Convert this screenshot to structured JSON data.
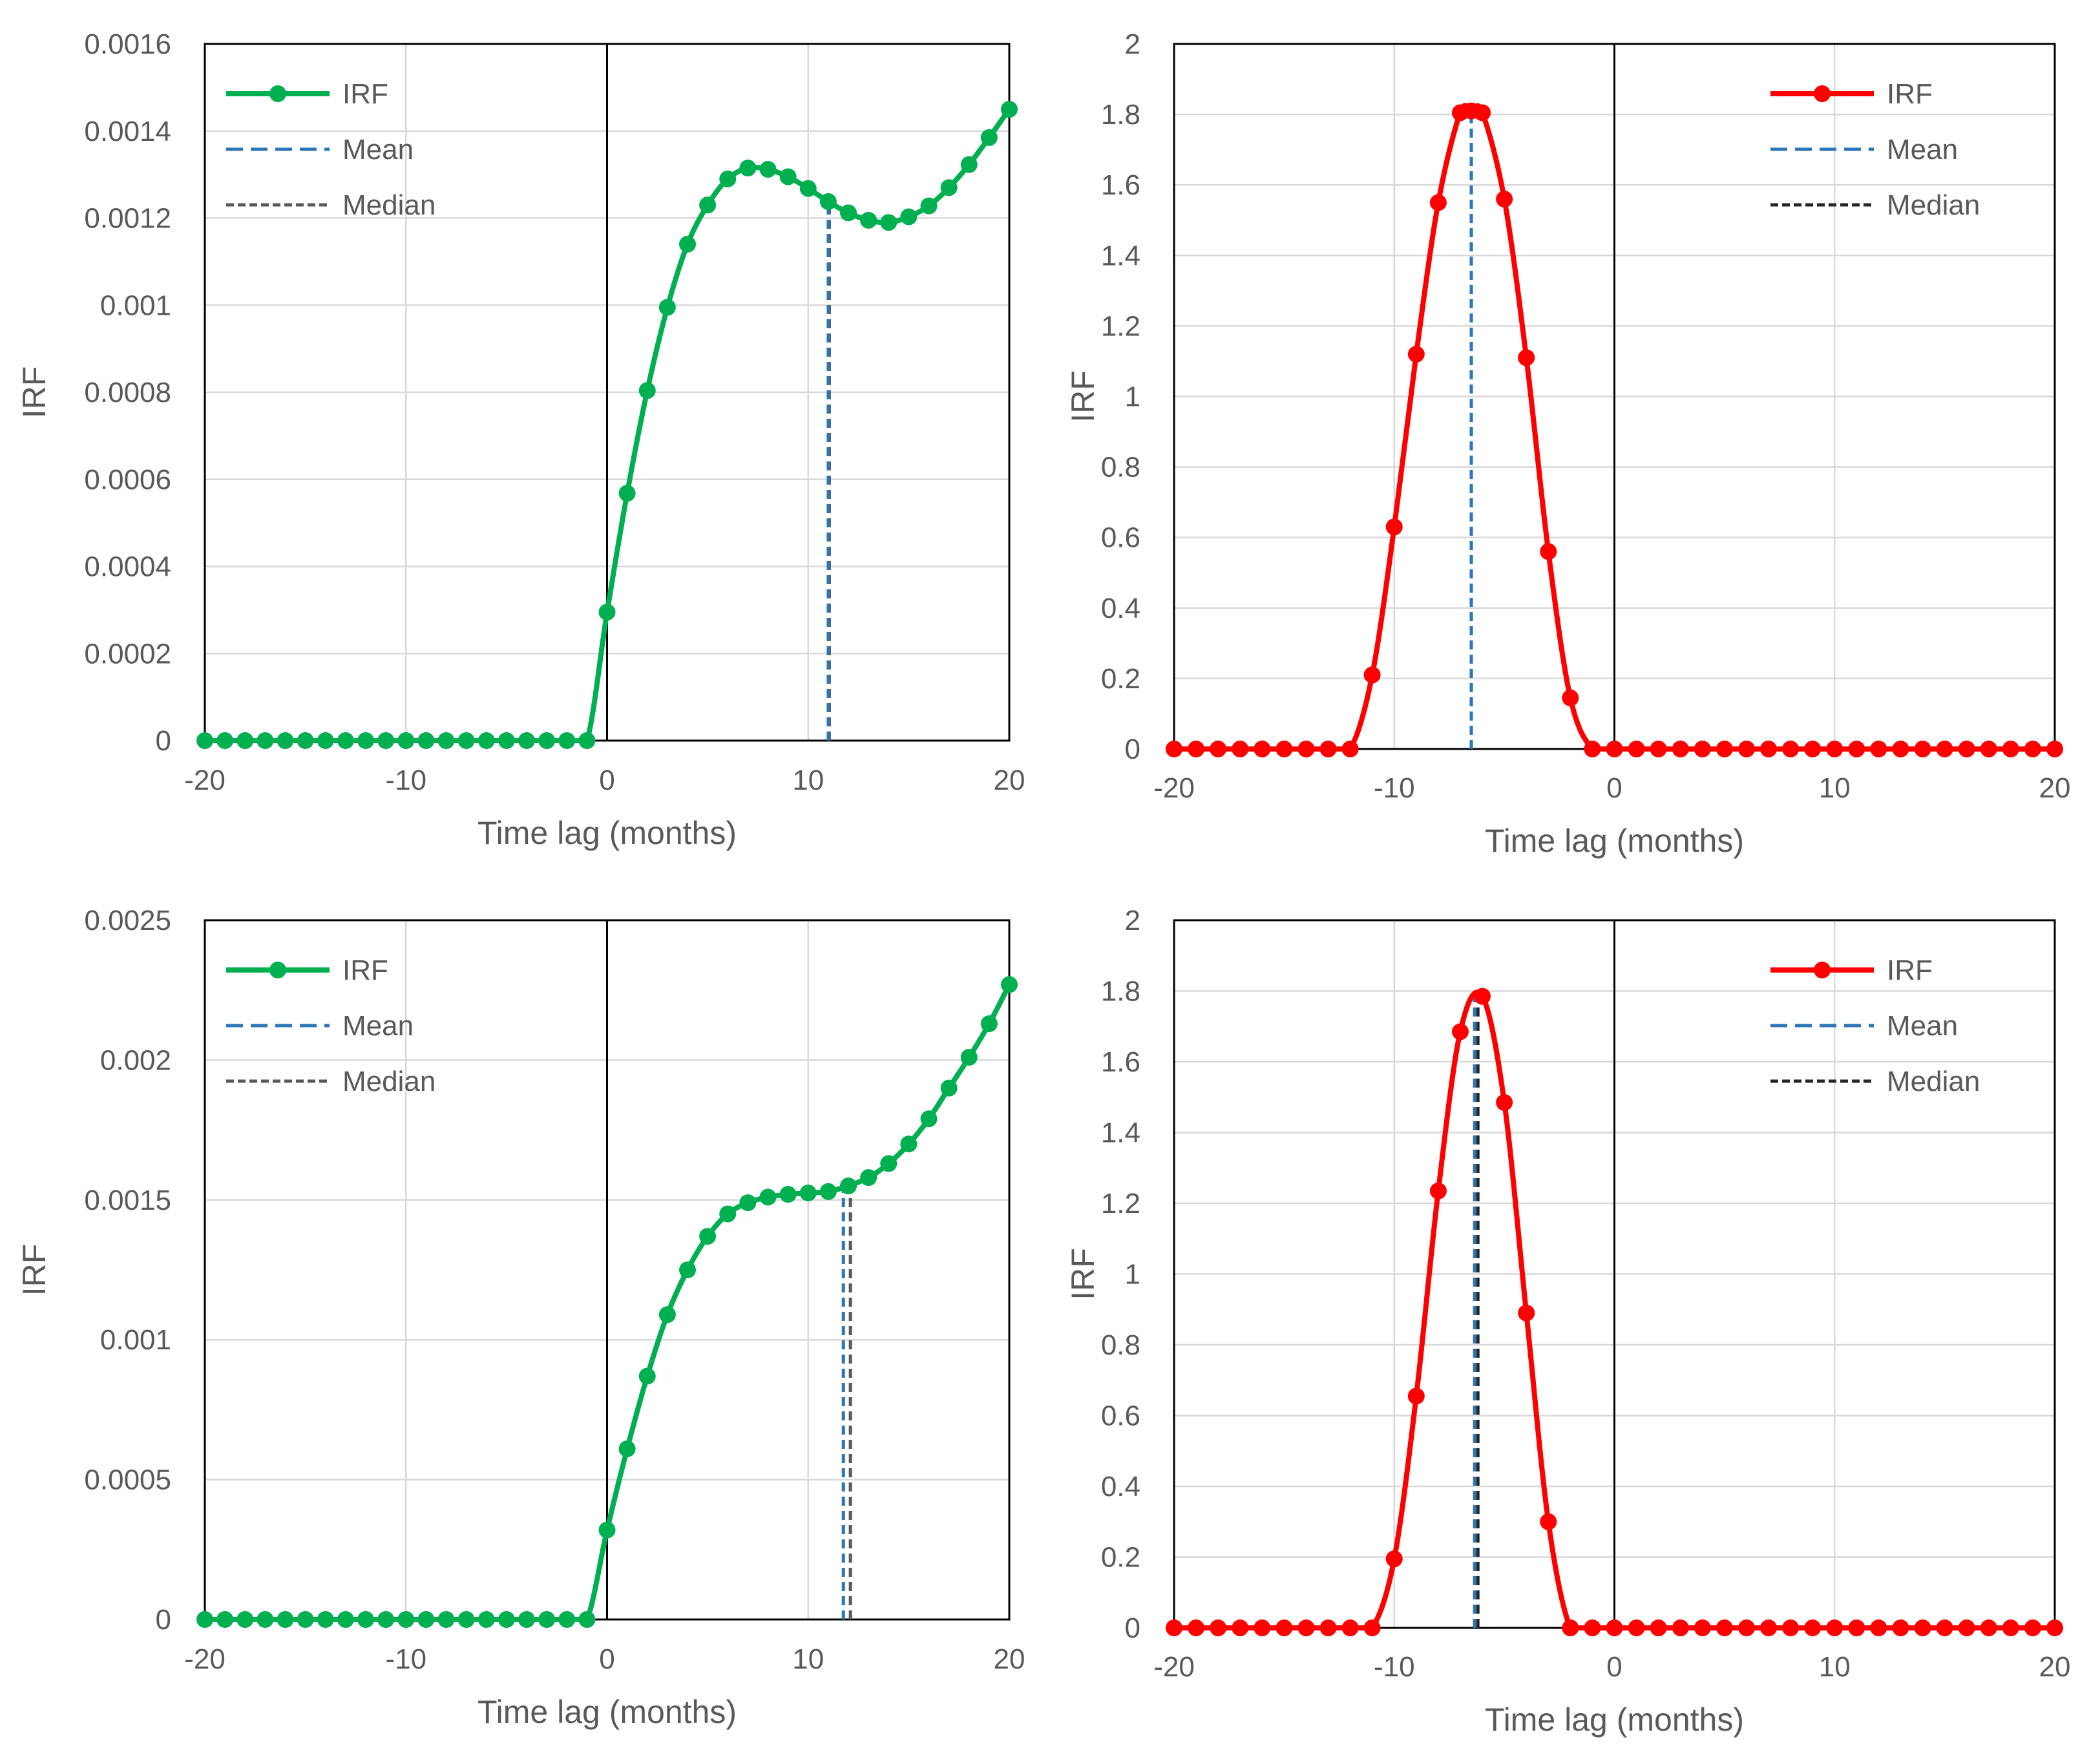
{
  "charts": {
    "chart_1": {
      "xlabel": "Time lag (months)",
      "ylabel": "IRF",
      "legend": {
        "irf": "IRF",
        "mean": "Mean",
        "median": "Median"
      },
      "x_ticks": [
        "-20",
        "-10",
        "0",
        "10",
        "20"
      ],
      "y_ticks": [
        "0",
        "0.0002",
        "0.0004",
        "0.0006",
        "0.0008",
        "0.001",
        "0.0012",
        "0.0014",
        "0.0016"
      ]
    },
    "chart_2": {
      "xlabel": "Time lag (months)",
      "ylabel": "IRF",
      "legend": {
        "irf": "IRF",
        "mean": "Mean",
        "median": "Median"
      },
      "x_ticks": [
        "-20",
        "-10",
        "0",
        "10",
        "20"
      ],
      "y_ticks": [
        "0",
        "0.2",
        "0.4",
        "0.6",
        "0.8",
        "1",
        "1.2",
        "1.4",
        "1.6",
        "1.8",
        "2"
      ]
    },
    "chart_3": {
      "xlabel": "Time lag (months)",
      "ylabel": "IRF",
      "legend": {
        "irf": "IRF",
        "mean": "Mean",
        "median": "Median"
      },
      "x_ticks": [
        "-20",
        "-10",
        "0",
        "10",
        "20"
      ],
      "y_ticks": [
        "0",
        "0.0005",
        "0.001",
        "0.0015",
        "0.002",
        "0.0025"
      ]
    },
    "chart_4": {
      "xlabel": "Time lag (months)",
      "ylabel": "IRF",
      "legend": {
        "irf": "IRF",
        "mean": "Mean",
        "median": "Median"
      },
      "x_ticks": [
        "-20",
        "-10",
        "0",
        "10",
        "20"
      ],
      "y_ticks": [
        "0",
        "0.2",
        "0.4",
        "0.6",
        "0.8",
        "1",
        "1.2",
        "1.4",
        "1.6",
        "1.8",
        "2"
      ]
    }
  },
  "chart_data": [
    {
      "type": "line",
      "xlabel": "Time lag (months)",
      "ylabel": "IRF",
      "xlim": [
        -20,
        20
      ],
      "ylim": [
        0,
        0.0016
      ],
      "grid": true,
      "legend_position": "top-left",
      "colors": {
        "irf": "#00b050",
        "mean": "#2e75b6",
        "median": "#595959"
      },
      "series": [
        {
          "name": "IRF",
          "x": [
            -20,
            -19,
            -18,
            -17,
            -16,
            -15,
            -14,
            -13,
            -12,
            -11,
            -10,
            -9,
            -8,
            -7,
            -6,
            -5,
            -4,
            -3,
            -2,
            -1,
            0,
            1,
            2,
            3,
            4,
            5,
            6,
            7,
            8,
            9,
            10,
            11,
            12,
            13,
            14,
            15,
            16,
            17,
            18,
            19,
            20
          ],
          "y": [
            0,
            0,
            0,
            0,
            0,
            0,
            0,
            0,
            0,
            0,
            0,
            0,
            0,
            0,
            0,
            0,
            0,
            0,
            0,
            0,
            0.000295,
            0.000568,
            0.000804,
            0.000995,
            0.00114,
            0.00123,
            0.00129,
            0.001315,
            0.001312,
            0.001295,
            0.001268,
            0.001238,
            0.001212,
            0.001195,
            0.00119,
            0.001203,
            0.001228,
            0.00127,
            0.001323,
            0.001385,
            0.00145
          ]
        }
      ],
      "mean_line": {
        "name": "Mean",
        "x": 11.0,
        "y": 0.001225
      },
      "median_line": {
        "name": "Median",
        "x": 11.05,
        "y": 0.001225
      }
    },
    {
      "type": "line",
      "xlabel": "Time lag (months)",
      "ylabel": "IRF",
      "xlim": [
        -20,
        20
      ],
      "ylim": [
        0,
        2
      ],
      "grid": true,
      "legend_position": "top-right",
      "colors": {
        "irf": "#ff0000",
        "mean": "#2e75b6",
        "median": "#262626"
      },
      "series": [
        {
          "name": "IRF",
          "x": [
            -20,
            -19,
            -18,
            -17,
            -16,
            -15,
            -14,
            -13,
            -12,
            -11,
            -10,
            -9,
            -8,
            -7,
            -6.5,
            -6,
            -5,
            -4,
            -3,
            -2,
            -1,
            0,
            1,
            2,
            3,
            4,
            5,
            6,
            7,
            8,
            9,
            10,
            11,
            12,
            13,
            14,
            15,
            16,
            17,
            18,
            19,
            20
          ],
          "y": [
            0,
            0,
            0,
            0,
            0,
            0,
            0,
            0,
            0,
            0.21,
            0.63,
            1.12,
            1.55,
            1.805,
            1.81,
            1.805,
            1.56,
            1.11,
            0.56,
            0.145,
            0,
            0,
            0,
            0,
            0,
            0,
            0,
            0,
            0,
            0,
            0,
            0,
            0,
            0,
            0,
            0,
            0,
            0,
            0,
            0,
            0,
            0
          ]
        }
      ],
      "mean_line": {
        "name": "Mean",
        "x": -6.5,
        "y": 1.81
      },
      "median_line": {
        "name": "Median",
        "x": -6.5,
        "y": 1.81
      }
    },
    {
      "type": "line",
      "xlabel": "Time lag (months)",
      "ylabel": "IRF",
      "xlim": [
        -20,
        20
      ],
      "ylim": [
        0,
        0.0025
      ],
      "grid": true,
      "legend_position": "top-left",
      "colors": {
        "irf": "#00b050",
        "mean": "#2e75b6",
        "median": "#595959"
      },
      "series": [
        {
          "name": "IRF",
          "x": [
            -20,
            -19,
            -18,
            -17,
            -16,
            -15,
            -14,
            -13,
            -12,
            -11,
            -10,
            -9,
            -8,
            -7,
            -6,
            -5,
            -4,
            -3,
            -2,
            -1,
            0,
            1,
            2,
            3,
            4,
            5,
            6,
            7,
            8,
            9,
            10,
            11,
            12,
            13,
            14,
            15,
            16,
            17,
            18,
            19,
            20
          ],
          "y": [
            0,
            0,
            0,
            0,
            0,
            0,
            0,
            0,
            0,
            0,
            0,
            0,
            0,
            0,
            0,
            0,
            0,
            0,
            0,
            0,
            0.00032,
            0.00061,
            0.00087,
            0.00109,
            0.00125,
            0.00137,
            0.00145,
            0.00149,
            0.00151,
            0.00152,
            0.001525,
            0.00153,
            0.00155,
            0.00158,
            0.00163,
            0.0017,
            0.00179,
            0.0019,
            0.00201,
            0.00213,
            0.00227
          ]
        }
      ],
      "mean_line": {
        "name": "Mean",
        "x": 11.75,
        "y": 0.00154
      },
      "median_line": {
        "name": "Median",
        "x": 12.1,
        "y": 0.00155
      }
    },
    {
      "type": "line",
      "xlabel": "Time lag (months)",
      "ylabel": "IRF",
      "xlim": [
        -20,
        20
      ],
      "ylim": [
        0,
        2
      ],
      "grid": true,
      "legend_position": "top-right",
      "colors": {
        "irf": "#ff0000",
        "mean": "#2e75b6",
        "median": "#262626"
      },
      "series": [
        {
          "name": "IRF",
          "x": [
            -20,
            -19,
            -18,
            -17,
            -16,
            -15,
            -14,
            -13,
            -12,
            -11,
            -10,
            -9,
            -8,
            -7,
            -6,
            -5,
            -4,
            -3,
            -2,
            -1,
            0,
            1,
            2,
            3,
            4,
            5,
            6,
            7,
            8,
            9,
            10,
            11,
            12,
            13,
            14,
            15,
            16,
            17,
            18,
            19,
            20
          ],
          "y": [
            0,
            0,
            0,
            0,
            0,
            0,
            0,
            0,
            0,
            0,
            0.195,
            0.655,
            1.235,
            1.685,
            1.785,
            1.485,
            0.89,
            0.3,
            0,
            0,
            0,
            0,
            0,
            0,
            0,
            0,
            0,
            0,
            0,
            0,
            0,
            0,
            0,
            0,
            0,
            0,
            0,
            0,
            0,
            0,
            0
          ]
        }
      ],
      "mean_line": {
        "name": "Mean",
        "x": -6.35,
        "y": 1.78
      },
      "median_line": {
        "name": "Median",
        "x": -6.2,
        "y": 1.78
      }
    }
  ]
}
